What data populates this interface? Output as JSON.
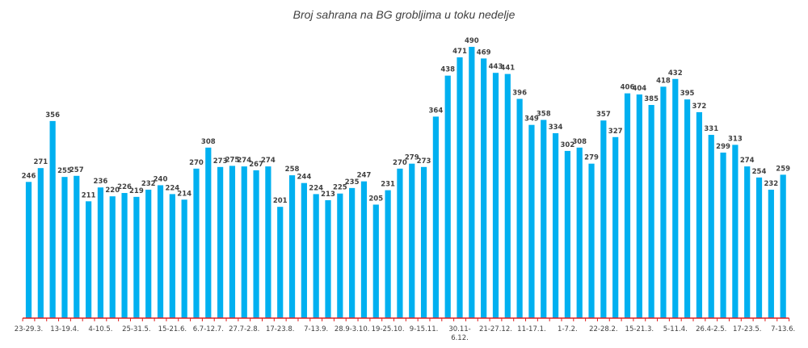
{
  "chart_data": {
    "type": "bar",
    "title": "Broj sahrana na BG grobljima u toku nedelje",
    "xlabel": "",
    "ylabel": "",
    "ylim": [
      0,
      520
    ],
    "grid": false,
    "colors": {
      "bar": "#00B0F0",
      "axis": "#E02020",
      "text": "#404040"
    },
    "categories": [
      "23-29.3.",
      "",
      "",
      "13-19.4.",
      "",
      "",
      "4-10.5.",
      "",
      "",
      "25-31.5.",
      "",
      "",
      "15-21.6.",
      "",
      "",
      "6.7-12.7.",
      "",
      "",
      "27.7-2.8.",
      "",
      "",
      "17-23.8.",
      "",
      "",
      "7-13.9.",
      "",
      "",
      "28.9-3.10.",
      "",
      "",
      "19-25.10.",
      "",
      "",
      "9-15.11.",
      "",
      "",
      "30.11-6.12.",
      "",
      "",
      "21-27.12.",
      "",
      "",
      "11-17.1.",
      "",
      "",
      "1-7.2.",
      "",
      "",
      "22-28.2.",
      "",
      "",
      "15-21.3.",
      "",
      "",
      "5-11.4.",
      "",
      "",
      "26.4-2.5.",
      "",
      "",
      "17-23.5.",
      "",
      "",
      "7-13.6."
    ],
    "values": [
      246,
      271,
      356,
      255,
      257,
      211,
      236,
      220,
      226,
      219,
      232,
      240,
      224,
      214,
      270,
      308,
      273,
      275,
      274,
      267,
      274,
      201,
      258,
      244,
      224,
      213,
      225,
      235,
      247,
      205,
      231,
      270,
      279,
      273,
      364,
      438,
      471,
      490,
      469,
      443,
      441,
      396,
      349,
      358,
      334,
      302,
      308,
      279,
      357,
      327,
      406,
      404,
      385,
      418,
      432,
      395,
      372,
      331,
      299,
      313,
      274,
      254,
      232,
      259
    ]
  }
}
